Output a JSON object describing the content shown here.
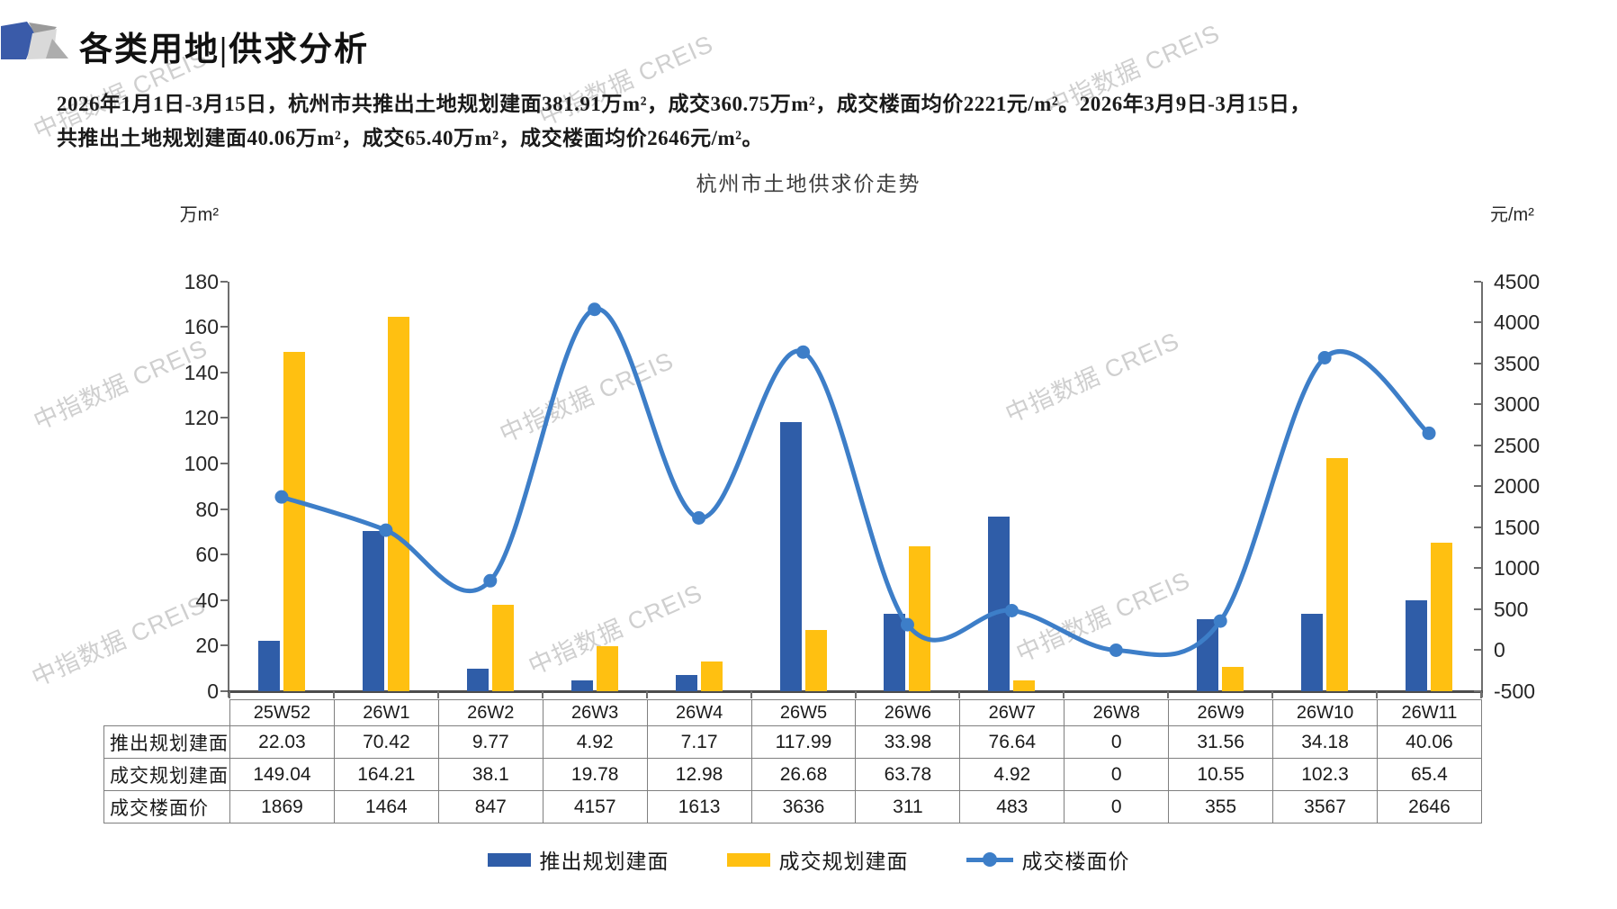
{
  "page": {
    "title": "各类用地|供求分析",
    "watermark": "中指数据 CREIS",
    "summary_lines": [
      "2026年1月1日-3月15日，杭州市共推出土地规划建面381.91万m²，成交360.75万m²，成交楼面均价2221元/m²。2026年3月9日-3月15日，",
      "共推出土地规划建面40.06万m²，成交65.40万m²，成交楼面均价2646元/m²。"
    ]
  },
  "chart_data": {
    "type": "bar+line",
    "title": "杭州市土地供求价走势",
    "categories": [
      "25W52",
      "26W1",
      "26W2",
      "26W3",
      "26W4",
      "26W5",
      "26W6",
      "26W7",
      "26W8",
      "26W9",
      "26W10",
      "26W11"
    ],
    "series": [
      {
        "name": "推出规划建面",
        "type": "bar",
        "axis": "left",
        "color": "#2F5DA8",
        "values": [
          22.03,
          70.42,
          9.77,
          4.92,
          7.17,
          117.99,
          33.98,
          76.64,
          0,
          31.56,
          34.18,
          40.06
        ]
      },
      {
        "name": "成交规划建面",
        "type": "bar",
        "axis": "left",
        "color": "#FFC011",
        "values": [
          149.04,
          164.21,
          38.1,
          19.78,
          12.98,
          26.68,
          63.78,
          4.92,
          0,
          10.55,
          102.3,
          65.4
        ]
      },
      {
        "name": "成交楼面价",
        "type": "line",
        "axis": "right",
        "color": "#3D7EC8",
        "values": [
          1869,
          1464,
          847,
          4157,
          1613,
          3636,
          311,
          483,
          0,
          355,
          3567,
          2646
        ]
      }
    ],
    "left_axis": {
      "unit": "万m²",
      "min": 0,
      "max": 180,
      "step": 20,
      "ticks": [
        180,
        160,
        140,
        120,
        100,
        80,
        60,
        40,
        20,
        0
      ]
    },
    "right_axis": {
      "unit": "元/m²",
      "min": -500,
      "max": 4500,
      "step": 500,
      "ticks": [
        4500,
        4000,
        3500,
        3000,
        2500,
        2000,
        1500,
        1000,
        500,
        0,
        -500
      ]
    },
    "grid": false,
    "legend_position": "bottom",
    "smoothed_line": true
  },
  "logo_colors": {
    "blue": "#3A5BA9",
    "gray_dark": "#9a9a9a",
    "gray_light": "#d9d9d9",
    "gray_mid": "#adadad"
  }
}
